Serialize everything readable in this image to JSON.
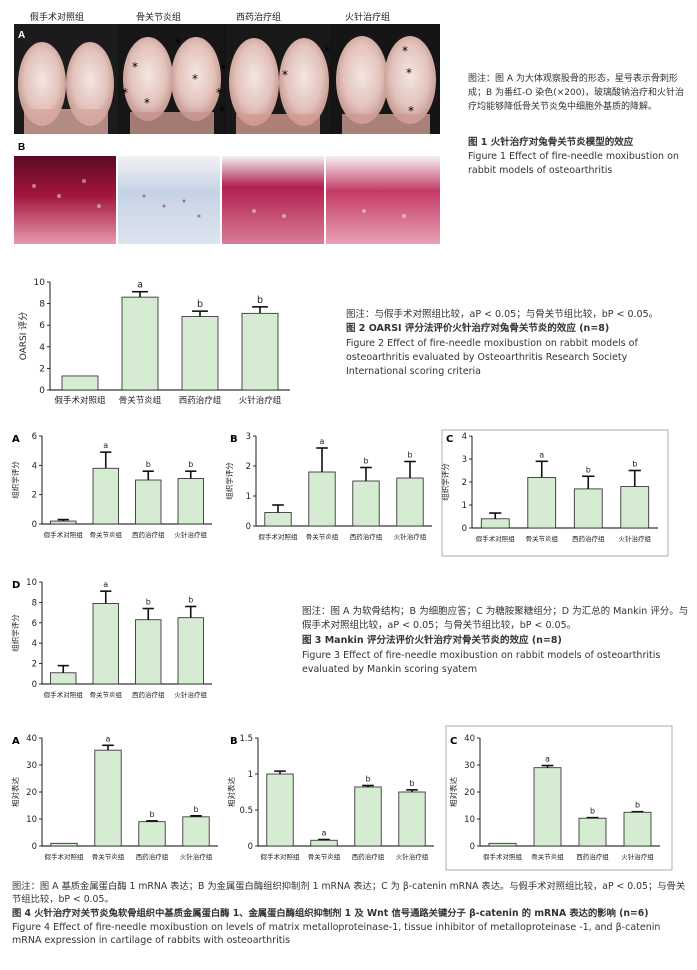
{
  "fig1": {
    "groups": [
      "假手术对照组",
      "骨关节炎组",
      "西药治疗组",
      "火针治疗组"
    ],
    "panel_a": "A",
    "panel_b": "B",
    "caption_note": "图注：图 A 为大体观察股骨的形态，星号表示骨刺形成；B 为番红-O 染色(×200)，玻璃酸钠治疗和火针治疗均能够降低骨关节炎兔中细胞外基质的降解。",
    "title_cn": "图 1    火针治疗对兔骨关节炎模型的效应",
    "title_en": "Figure 1    Effect of fire-needle moxibustion on rabbit models of osteoarthritis",
    "star": "*",
    "colors": {
      "cartilage": "#e8cfc9",
      "stain": "#a0163a",
      "bg": "#1a1a1a"
    }
  },
  "fig2": {
    "caption_note": "图注：与假手术对照组比较，aP < 0.05；与骨关节组比较，bP < 0.05。",
    "title_cn": "图 2    OARSI 评分法评价火针治疗对兔骨关节炎的效应",
    "title_n": "(n=8)",
    "title_en": "Figure 2    Effect of fire-needle moxibustion on rabbit models of osteoarthritis evaluated by Osteoarthritis Research Society International scoring criteria"
  },
  "fig3": {
    "caption_note": "图注：图 A 为软骨结构；B 为细胞应答；C 为糖胺聚糖组分；D 为汇总的 Mankin 评分。与假手术对照组比较，aP < 0.05；与骨关节组比较，bP < 0.05。",
    "title_cn": "图 3    Mankin 评分法评价火针治疗对骨关节炎的效应",
    "title_n": "(n=8)",
    "title_en": "Figure 3    Effect of fire-needle moxibustion on rabbit models of osteoarthritis evaluated by Mankin scoring syatem"
  },
  "fig4": {
    "caption_note": "图注：图 A 基质金属蛋白酶 1 mRNA 表达；B 为金属蛋白酶组织抑制剂 1 mRNA 表达；C 为 β-catenin mRNA 表达。与假手术对照组比较，aP < 0.05；与骨关节组比较，bP < 0.05。",
    "title_cn": "图 4    火针治疗对关节炎兔软骨组织中基质金属蛋白酶 1、金属蛋白酶组织抑制剂 1 及 Wnt 信号通路关键分子 β-catenin 的 mRNA 表达的影响",
    "title_n": "(n=6)",
    "title_en": "Figure 4    Effect of fire-needle moxibustion on levels of matrix metalloproteinase-1, tissue inhibitor of metalloproteinase -1, and β-catenin mRNA expression in cartilage of rabbits with osteoarthritis"
  },
  "chart_data": [
    {
      "id": "fig2",
      "type": "bar",
      "panel": "",
      "ylabel": "OARSI 评分",
      "ylim": [
        0,
        10
      ],
      "yticks": [
        0,
        2,
        4,
        6,
        8,
        10
      ],
      "categories": [
        "假手术对照组",
        "骨关节炎组",
        "西药治疗组",
        "火针治疗组"
      ],
      "values": [
        1.3,
        8.6,
        6.8,
        7.1
      ],
      "errors": [
        0,
        0.5,
        0.5,
        0.6
      ],
      "marks": [
        "",
        "a",
        "b",
        "b"
      ],
      "bar_color": "#d6ecd2"
    },
    {
      "id": "fig3a",
      "type": "bar",
      "panel": "A",
      "ylabel": "组织学评分",
      "ylim": [
        0,
        6
      ],
      "yticks": [
        0,
        2,
        4,
        6
      ],
      "categories": [
        "假手术对照组",
        "骨关节炎组",
        "西药治疗组",
        "火针治疗组"
      ],
      "values": [
        0.2,
        3.8,
        3.0,
        3.1
      ],
      "errors": [
        0.1,
        1.1,
        0.6,
        0.5
      ],
      "marks": [
        "",
        "a",
        "b",
        "b"
      ],
      "bar_color": "#d6ecd2"
    },
    {
      "id": "fig3b",
      "type": "bar",
      "panel": "B",
      "ylabel": "组织学评分",
      "ylim": [
        0,
        3
      ],
      "yticks": [
        0,
        1,
        2,
        3
      ],
      "categories": [
        "假手术对照组",
        "骨关节炎组",
        "西药治疗组",
        "火针治疗组"
      ],
      "values": [
        0.45,
        1.8,
        1.5,
        1.6
      ],
      "errors": [
        0.25,
        0.8,
        0.45,
        0.55
      ],
      "marks": [
        "",
        "a",
        "b",
        "b"
      ],
      "bar_color": "#d6ecd2"
    },
    {
      "id": "fig3c",
      "type": "bar",
      "panel": "C",
      "ylabel": "组织学评分",
      "ylim": [
        0,
        4
      ],
      "yticks": [
        0,
        1,
        2,
        3,
        4
      ],
      "categories": [
        "假手术对照组",
        "骨关节炎组",
        "西药治疗组",
        "火针治疗组"
      ],
      "values": [
        0.4,
        2.2,
        1.7,
        1.8
      ],
      "errors": [
        0.25,
        0.7,
        0.55,
        0.7
      ],
      "marks": [
        "",
        "a",
        "b",
        "b"
      ],
      "bar_color": "#d6ecd2"
    },
    {
      "id": "fig3d",
      "type": "bar",
      "panel": "D",
      "ylabel": "组织学评分",
      "ylim": [
        0,
        10
      ],
      "yticks": [
        0,
        2,
        4,
        6,
        8,
        10
      ],
      "categories": [
        "假手术对照组",
        "骨关节炎组",
        "西药治疗组",
        "火针治疗组"
      ],
      "values": [
        1.1,
        7.9,
        6.3,
        6.5
      ],
      "errors": [
        0.7,
        1.2,
        1.1,
        1.1
      ],
      "marks": [
        "",
        "a",
        "b",
        "b"
      ],
      "bar_color": "#d6ecd2"
    },
    {
      "id": "fig4a",
      "type": "bar",
      "panel": "A",
      "ylabel": "相对表达",
      "ylim": [
        0,
        40
      ],
      "yticks": [
        0,
        10,
        20,
        30,
        40
      ],
      "categories": [
        "假手术对照组",
        "骨关节炎组",
        "西药治疗组",
        "火针治疗组"
      ],
      "values": [
        1.0,
        35.5,
        9.0,
        10.8
      ],
      "errors": [
        0,
        1.8,
        0.3,
        0.4
      ],
      "marks": [
        "",
        "a",
        "b",
        "b"
      ],
      "bar_color": "#d6ecd2"
    },
    {
      "id": "fig4b",
      "type": "bar",
      "panel": "B",
      "ylabel": "相对表达",
      "ylim": [
        0,
        1.5
      ],
      "yticks": [
        0,
        0.5,
        1.0,
        1.5
      ],
      "categories": [
        "假手术对照组",
        "骨关节炎组",
        "西药治疗组",
        "火针治疗组"
      ],
      "values": [
        1.0,
        0.08,
        0.82,
        0.75
      ],
      "errors": [
        0.04,
        0.01,
        0.02,
        0.03
      ],
      "marks": [
        "",
        "a",
        "b",
        "b"
      ],
      "bar_color": "#d6ecd2"
    },
    {
      "id": "fig4c",
      "type": "bar",
      "panel": "C",
      "ylabel": "相对表达",
      "ylim": [
        0,
        40
      ],
      "yticks": [
        0,
        10,
        20,
        30,
        40
      ],
      "categories": [
        "假手术对照组",
        "骨关节炎组",
        "西药治疗组",
        "火针治疗组"
      ],
      "values": [
        1.0,
        29.0,
        10.3,
        12.5
      ],
      "errors": [
        0,
        0.8,
        0.2,
        0.2
      ],
      "marks": [
        "",
        "a",
        "b",
        "b"
      ],
      "bar_color": "#d6ecd2"
    }
  ]
}
